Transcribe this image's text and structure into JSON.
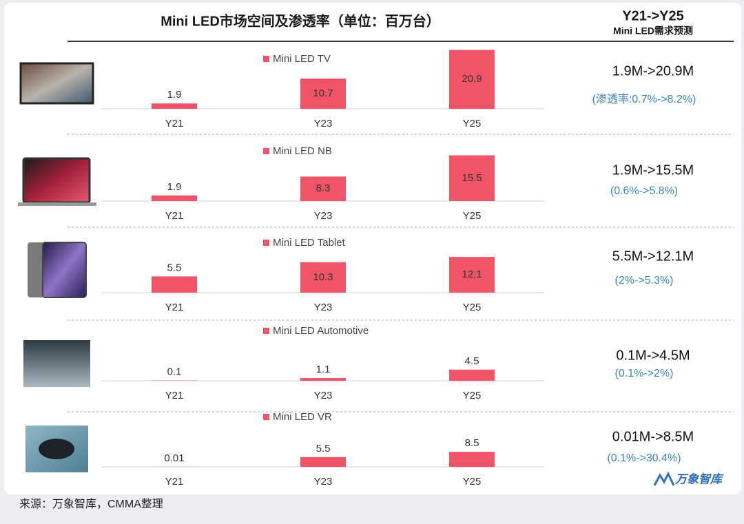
{
  "title": "Mini LED市场空间及渗透率（单位：百万台）",
  "right_header": {
    "title": "Y21->Y25",
    "subtitle": "Mini LED需求预测"
  },
  "source": "来源：万象智库，CMMA整理",
  "logo": "万象智库",
  "chart_data": [
    {
      "type": "bar",
      "categories": [
        "Y21",
        "Y23",
        "Y25"
      ],
      "series": [
        {
          "name": "Mini LED TV",
          "color": "#f05468",
          "values": [
            1.9,
            10.7,
            20.9
          ]
        }
      ],
      "ylim": [
        0,
        22
      ],
      "summary": "1.9M->20.9M",
      "note": "(渗透率:0.7%->8.2%)"
    },
    {
      "type": "bar",
      "categories": [
        "Y21",
        "Y23",
        "Y25"
      ],
      "series": [
        {
          "name": "Mini LED NB",
          "color": "#f05468",
          "values": [
            1.9,
            8.3,
            15.5
          ]
        }
      ],
      "ylim": [
        0,
        21
      ],
      "summary": "1.9M->15.5M",
      "note": "(0.6%->5.8%)"
    },
    {
      "type": "bar",
      "categories": [
        "Y21",
        "Y23",
        "Y25"
      ],
      "series": [
        {
          "name": "Mini LED Tablet",
          "color": "#f05468",
          "values": [
            5.5,
            10.3,
            12.1
          ]
        }
      ],
      "ylim": [
        0,
        21
      ],
      "summary": "5.5M->12.1M",
      "note": "(2%->5.3%)"
    },
    {
      "type": "bar",
      "categories": [
        "Y21",
        "Y23",
        "Y25"
      ],
      "series": [
        {
          "name": "Mini LED Automotive",
          "color": "#f05468",
          "values": [
            0.1,
            1.1,
            4.5
          ]
        }
      ],
      "ylim": [
        0,
        25
      ],
      "summary": "0.1M->4.5M",
      "note": "(0.1%->2%)"
    },
    {
      "type": "bar",
      "categories": [
        "Y21",
        "Y23",
        "Y25"
      ],
      "series": [
        {
          "name": "Mini LED VR",
          "color": "#f05468",
          "values": [
            0.01,
            5.5,
            8.5
          ]
        }
      ],
      "ylim": [
        0,
        35
      ],
      "summary": "0.01M->8.5M",
      "note": "(0.1%->30.4%)"
    }
  ]
}
